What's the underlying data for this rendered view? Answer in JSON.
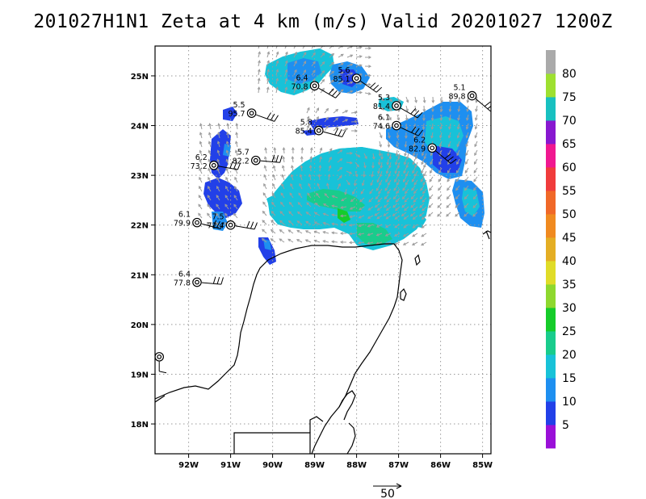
{
  "title": "201027H1N1 Zeta at 4 km (m/s) Valid 20201027 1200Z",
  "map_extent": {
    "lon": [
      -92.8,
      -84.8
    ],
    "lat": [
      17.4,
      25.6
    ]
  },
  "axes": {
    "lat_labels": [
      "18N",
      "19N",
      "20N",
      "21N",
      "22N",
      "23N",
      "24N",
      "25N"
    ],
    "lat_values": [
      18,
      19,
      20,
      21,
      22,
      23,
      24,
      25
    ],
    "lon_labels": [
      "92W",
      "91W",
      "90W",
      "89W",
      "88W",
      "87W",
      "86W",
      "85W"
    ],
    "lon_values": [
      -92,
      -91,
      -90,
      -89,
      -88,
      -87,
      -86,
      -85
    ]
  },
  "colorbar": {
    "labels": [
      "5",
      "10",
      "15",
      "20",
      "25",
      "30",
      "35",
      "40",
      "45",
      "50",
      "55",
      "60",
      "65",
      "70",
      "75",
      "80"
    ],
    "colors": [
      "#9a10d8",
      "#2240e8",
      "#1e8ff0",
      "#18c2d8",
      "#19cc8c",
      "#15cc2a",
      "#8ed82e",
      "#e0dc28",
      "#e4ae24",
      "#f08a20",
      "#f06828",
      "#f03c3c",
      "#f01890",
      "#8818d0",
      "#18c0c0",
      "#9ee030",
      "#aaaaaa"
    ]
  },
  "reference_vector": {
    "label": "50"
  },
  "stations": [
    {
      "lat": 24.8,
      "lon": -89.0,
      "t": "6.4",
      "v": "70.8"
    },
    {
      "lat": 24.95,
      "lon": -88.0,
      "t": "5.6",
      "v": "85.1"
    },
    {
      "lat": 24.6,
      "lon": -85.25,
      "t": "5.1",
      "v": "89.8"
    },
    {
      "lat": 24.25,
      "lon": -90.5,
      "t": "5.5",
      "v": "95.7"
    },
    {
      "lat": 24.4,
      "lon": -87.05,
      "t": "5.3",
      "v": "81.4"
    },
    {
      "lat": 24.0,
      "lon": -87.05,
      "t": "6.1",
      "v": "74.6"
    },
    {
      "lat": 23.9,
      "lon": -88.9,
      "t": "5.8",
      "v": "85.4"
    },
    {
      "lat": 23.55,
      "lon": -86.2,
      "t": "6.2",
      "v": "82.9"
    },
    {
      "lat": 23.3,
      "lon": -90.4,
      "t": "5.7",
      "v": "82.2"
    },
    {
      "lat": 23.2,
      "lon": -91.4,
      "t": "6.2",
      "v": "73.2"
    },
    {
      "lat": 22.05,
      "lon": -91.8,
      "t": "6.1",
      "v": "79.9"
    },
    {
      "lat": 22.0,
      "lon": -91.0,
      "t": "7.5",
      "v": "72.4"
    },
    {
      "lat": 20.85,
      "lon": -91.8,
      "t": "6.4",
      "v": "77.8"
    },
    {
      "lat": 19.35,
      "lon": -92.7,
      "t": "",
      "v": ""
    }
  ]
}
